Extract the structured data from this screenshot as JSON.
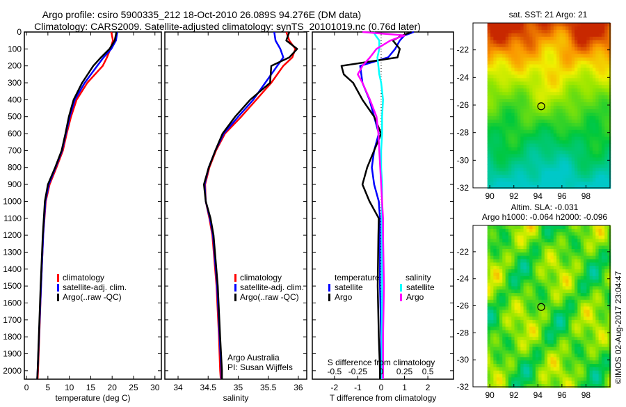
{
  "title_line1": "Argo profile: csiro 5900335_212 18-Oct-2010 26.089S 94.276E (DM data)",
  "title_line2": "Climatology: CARS2009. Satellite-adjusted climatology: synTS_20101019.nc (0.76d later)",
  "colors": {
    "climatology": "#ff0000",
    "satellite": "#0000ff",
    "argo": "#000000",
    "sal_satellite": "#00ffff",
    "sal_argo": "#ff00ff"
  },
  "chart_data": [
    {
      "type": "line",
      "name": "temperature-profile",
      "xlabel": "temperature (deg C)",
      "ylabel": "depth",
      "xlim": [
        -0.5,
        31.5
      ],
      "ylim": [
        2050,
        0
      ],
      "xticks": [
        0,
        5,
        10,
        15,
        20,
        25,
        30
      ],
      "yticks": [
        0,
        100,
        200,
        300,
        400,
        500,
        600,
        700,
        800,
        900,
        1000,
        1100,
        1200,
        1300,
        1400,
        1500,
        1600,
        1700,
        1800,
        1900,
        2000
      ],
      "legend": [
        "climatology",
        "satellite-adj. clim.",
        "Argo(..raw -QC)"
      ],
      "depth": [
        0,
        50,
        100,
        150,
        200,
        300,
        400,
        500,
        600,
        700,
        800,
        900,
        1000,
        1200,
        1500,
        2000,
        2050
      ],
      "series": [
        {
          "name": "climatology",
          "values": [
            19.8,
            20.2,
            19.6,
            18.8,
            17.8,
            14.2,
            11.7,
            10.4,
            9.4,
            8.5,
            7.0,
            5.4,
            4.5,
            3.9,
            3.4,
            2.7,
            2.6
          ]
        },
        {
          "name": "satellite-adj. clim.",
          "values": [
            21.2,
            20.9,
            19.8,
            18.0,
            16.5,
            13.6,
            11.3,
            10.1,
            9.2,
            8.3,
            6.8,
            5.2,
            4.4,
            3.9,
            3.4,
            2.6,
            2.5
          ]
        },
        {
          "name": "Argo(..raw -QC)",
          "values": [
            21.0,
            20.6,
            19.4,
            17.4,
            15.6,
            13.0,
            11.0,
            9.9,
            9.1,
            8.2,
            6.7,
            5.0,
            4.3,
            3.8,
            3.3,
            2.6,
            2.5
          ]
        }
      ]
    },
    {
      "type": "line",
      "name": "salinity-profile",
      "xlabel": "salinity",
      "xlim": [
        33.78,
        36.14
      ],
      "ylim": [
        2050,
        0
      ],
      "xticks": [
        34,
        34.5,
        35,
        35.5,
        36
      ],
      "legend": [
        "climatology",
        "satellite-adj. clim.",
        "Argo(..raw -QC)"
      ],
      "annotation": [
        "Argo Australia",
        "PI: Susan Wijffels"
      ],
      "depth": [
        0,
        50,
        100,
        150,
        200,
        300,
        400,
        500,
        600,
        700,
        800,
        900,
        1000,
        1100,
        1200,
        1500,
        1800,
        2000,
        2050
      ],
      "series": [
        {
          "name": "climatology",
          "values": [
            35.8,
            35.85,
            35.95,
            35.9,
            35.75,
            35.55,
            35.3,
            35.05,
            34.78,
            34.63,
            34.52,
            34.45,
            34.46,
            34.52,
            34.57,
            34.64,
            34.68,
            34.7,
            34.71
          ]
        },
        {
          "name": "satellite-adj. clim.",
          "values": [
            35.6,
            35.62,
            35.7,
            35.75,
            35.65,
            35.45,
            35.25,
            35.0,
            34.76,
            34.62,
            34.51,
            34.44,
            34.46,
            34.53,
            34.58,
            34.65,
            34.69,
            34.72,
            34.72
          ]
        },
        {
          "name": "Argo(..raw -QC)",
          "values": [
            35.85,
            35.8,
            35.98,
            35.85,
            35.55,
            35.53,
            35.2,
            34.95,
            34.74,
            34.62,
            34.51,
            34.43,
            34.46,
            34.54,
            34.59,
            34.66,
            34.7,
            34.73,
            34.73
          ]
        }
      ]
    },
    {
      "type": "line",
      "name": "difference-profile",
      "xlabel": "T difference from climatology",
      "x2label": "S difference from climatology",
      "xlim": [
        -2.95,
        3.1
      ],
      "xticks": [
        -2,
        -1,
        0,
        1,
        2
      ],
      "x2ticks": [
        -0.5,
        -0.25,
        0,
        0.25,
        0.5
      ],
      "ylim": [
        2050,
        0
      ],
      "legend_temperature_title": "temperature",
      "legend_salinity_title": "salinity",
      "legend": [
        "satellite",
        "Argo",
        "satellite",
        "Argo"
      ],
      "depth": [
        0,
        20,
        50,
        100,
        150,
        200,
        250,
        300,
        400,
        500,
        600,
        700,
        800,
        900,
        1000,
        1100,
        1200,
        1500,
        1800,
        2000,
        2050
      ],
      "series": [
        {
          "name": "T satellite",
          "var": "T",
          "values": [
            1.4,
            1.0,
            0.8,
            0.6,
            0.3,
            -0.9,
            -0.85,
            -0.8,
            -0.5,
            -0.3,
            -0.1,
            -0.3,
            -0.4,
            -0.3,
            -0.1,
            -0.05,
            -0.05,
            -0.05,
            0,
            0,
            0
          ]
        },
        {
          "name": "T Argo",
          "var": "T",
          "values": [
            1.3,
            0.9,
            0.5,
            0.8,
            0.7,
            -1.7,
            -1.6,
            -1.2,
            -0.8,
            -0.3,
            0.0,
            -0.3,
            -0.6,
            -0.8,
            -0.5,
            -0.1,
            -0.12,
            -0.15,
            -0.1,
            -0.05,
            -0.05
          ]
        },
        {
          "name": "S satellite",
          "var": "S",
          "values": [
            -0.08,
            -0.06,
            -0.02,
            -0.02,
            -0.04,
            -0.03,
            -0.02,
            0.0,
            0.02,
            0.01,
            0.01,
            0.0,
            0.0,
            0.01,
            0.01,
            0.01,
            0.01,
            0.01,
            0.01,
            0.01,
            0.01
          ]
        },
        {
          "name": "S Argo",
          "var": "S",
          "values": [
            -0.2,
            0.25,
            0.1,
            -0.05,
            -0.12,
            -0.2,
            -0.25,
            -0.2,
            -0.12,
            -0.05,
            -0.03,
            -0.02,
            -0.01,
            0.0,
            0.01,
            0.02,
            0.02,
            0.03,
            0.02,
            0.02,
            0.02
          ]
        }
      ]
    },
    {
      "type": "heatmap",
      "name": "sst-map",
      "title": "sat. SST: 21 Argo: 21",
      "xlim": [
        88.6,
        100
      ],
      "ylim": [
        -32,
        -20.05
      ],
      "xticks": [
        90,
        92,
        94,
        96,
        98
      ],
      "yticks": [
        -22,
        -24,
        -26,
        -28,
        -30,
        -32
      ],
      "float_position": {
        "lon": 94.276,
        "lat": -26.089
      }
    },
    {
      "type": "heatmap",
      "name": "sla-map",
      "title": [
        "Altim. SLA: -0.031",
        "Argo h1000: -0.064 h2000: -0.096"
      ],
      "xlim": [
        88.6,
        100
      ],
      "ylim": [
        -32,
        -20.05
      ],
      "xticks": [
        90,
        92,
        94,
        96,
        98
      ],
      "yticks": [
        -22,
        -24,
        -26,
        -28,
        -30,
        -32
      ],
      "float_position": {
        "lon": 94.276,
        "lat": -26.089
      }
    }
  ],
  "credit": "©IMOS 02-Aug-2017 23:04:47"
}
